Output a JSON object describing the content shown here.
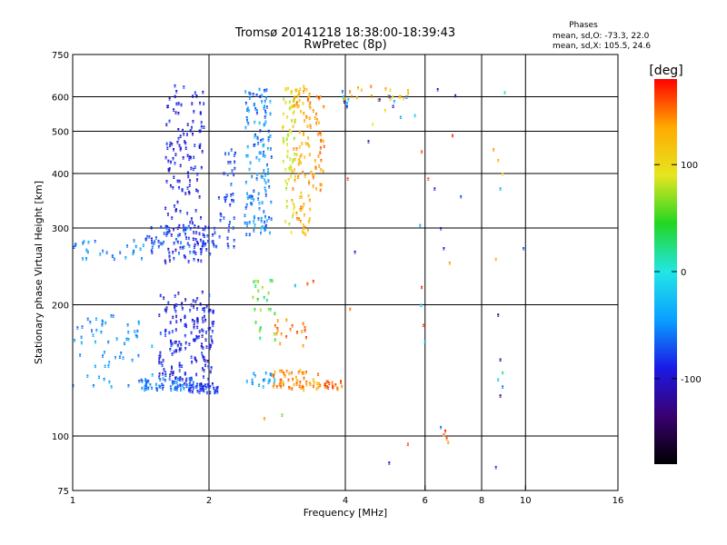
{
  "chart_data": {
    "type": "scatter",
    "title_line1": "Tromsø 20141218 18:38:00-18:39:43",
    "title_line2": "RwPretec (8p)",
    "stats": {
      "heading": "Phases",
      "line1": "mean, sd,O: -73.3, 22.0",
      "line2": "mean, sd,X: 105.5, 24.6"
    },
    "xlabel": "Frequency [MHz]",
    "ylabel": "Stationary phase Virtual Height [km]",
    "x_scale": "log",
    "y_scale": "log",
    "xlim": [
      1,
      16
    ],
    "ylim": [
      75,
      750
    ],
    "x_ticks": [
      {
        "value": 1,
        "label": "1"
      },
      {
        "value": 2,
        "label": "2"
      },
      {
        "value": 4,
        "label": "4"
      },
      {
        "value": 6,
        "label": "6"
      },
      {
        "value": 8,
        "label": "8"
      },
      {
        "value": 10,
        "label": "10"
      },
      {
        "value": 16,
        "label": "16"
      }
    ],
    "y_ticks": [
      {
        "value": 75,
        "label": "75"
      },
      {
        "value": 100,
        "label": "100"
      },
      {
        "value": 200,
        "label": "200"
      },
      {
        "value": 300,
        "label": "300"
      },
      {
        "value": 400,
        "label": "400"
      },
      {
        "value": 500,
        "label": "500"
      },
      {
        "value": 600,
        "label": "600"
      },
      {
        "value": 750,
        "label": "750"
      }
    ],
    "grid": true,
    "grid_x": [
      2,
      4,
      6,
      8,
      10
    ],
    "grid_y": [
      100,
      200,
      300,
      400,
      500,
      600
    ],
    "colorbar": {
      "label": "[deg]",
      "min": -180,
      "max": 180,
      "ticks": [
        {
          "value": 100,
          "label": "100"
        },
        {
          "value": 0,
          "label": "0"
        },
        {
          "value": -100,
          "label": "-100"
        }
      ],
      "colors": [
        "#000000",
        "#3a0070",
        "#1a1ae6",
        "#0aa0ff",
        "#22e6e6",
        "#22d622",
        "#e6e620",
        "#ffaa00",
        "#ff0000"
      ]
    },
    "clusters": [
      {
        "x": [
          1.55,
          2.05
        ],
        "y": [
          130,
          215
        ],
        "phase": [
          -110,
          -70
        ],
        "n": 180
      },
      {
        "x": [
          1.6,
          1.95
        ],
        "y": [
          250,
          640
        ],
        "phase": [
          -110,
          -75
        ],
        "n": 150
      },
      {
        "x": [
          1.45,
          2.1
        ],
        "y": [
          262,
          305
        ],
        "phase": [
          -95,
          -55
        ],
        "n": 80
      },
      {
        "x": [
          1.0,
          1.45
        ],
        "y": [
          255,
          282
        ],
        "phase": [
          -65,
          -40
        ],
        "n": 30
      },
      {
        "x": [
          1.0,
          1.5
        ],
        "y": [
          130,
          190
        ],
        "phase": [
          -65,
          -35
        ],
        "n": 55
      },
      {
        "x": [
          1.4,
          1.85
        ],
        "y": [
          128,
          136
        ],
        "phase": [
          -75,
          -45
        ],
        "n": 60
      },
      {
        "x": [
          1.8,
          2.1
        ],
        "y": [
          126,
          132
        ],
        "phase": [
          -90,
          -70
        ],
        "n": 40
      },
      {
        "x": [
          2.1,
          2.3
        ],
        "y": [
          270,
          460
        ],
        "phase": [
          -90,
          -60
        ],
        "n": 40
      },
      {
        "x": [
          2.4,
          2.75
        ],
        "y": [
          290,
          630
        ],
        "phase": [
          -80,
          -30
        ],
        "n": 140
      },
      {
        "x": [
          2.5,
          2.8
        ],
        "y": [
          160,
          230
        ],
        "phase": [
          20,
          80
        ],
        "n": 25
      },
      {
        "x": [
          2.4,
          2.8
        ],
        "y": [
          130,
          140
        ],
        "phase": [
          -60,
          -30
        ],
        "n": 20
      },
      {
        "x": [
          2.9,
          3.1
        ],
        "y": [
          290,
          640
        ],
        "phase": [
          70,
          110
        ],
        "n": 60
      },
      {
        "x": [
          3.05,
          3.35
        ],
        "y": [
          290,
          640
        ],
        "phase": [
          110,
          150
        ],
        "n": 90
      },
      {
        "x": [
          3.3,
          3.6
        ],
        "y": [
          360,
          620
        ],
        "phase": [
          125,
          160
        ],
        "n": 45
      },
      {
        "x": [
          2.75,
          3.6
        ],
        "y": [
          128,
          142
        ],
        "phase": [
          125,
          160
        ],
        "n": 60
      },
      {
        "x": [
          3.6,
          3.95
        ],
        "y": [
          128,
          134
        ],
        "phase": [
          140,
          170
        ],
        "n": 18
      },
      {
        "x": [
          2.8,
          3.3
        ],
        "y": [
          160,
          190
        ],
        "phase": [
          130,
          165
        ],
        "n": 18
      },
      {
        "x": [
          3.8,
          5.6
        ],
        "y": [
          590,
          640
        ],
        "phase": [
          100,
          150
        ],
        "n": 20
      },
      {
        "x": [
          3.8,
          5.6
        ],
        "y": [
          560,
          620
        ],
        "phase": [
          -110,
          -30
        ],
        "n": 10
      }
    ],
    "points": [
      {
        "x": 3.4,
        "y": 227,
        "phase": 165
      },
      {
        "x": 3.3,
        "y": 224,
        "phase": 160
      },
      {
        "x": 3.1,
        "y": 222,
        "phase": -40
      },
      {
        "x": 2.65,
        "y": 110,
        "phase": 140
      },
      {
        "x": 2.9,
        "y": 112,
        "phase": 60
      },
      {
        "x": 4.1,
        "y": 196,
        "phase": 150
      },
      {
        "x": 4.05,
        "y": 390,
        "phase": 160
      },
      {
        "x": 4.2,
        "y": 265,
        "phase": -90
      },
      {
        "x": 4.5,
        "y": 475,
        "phase": -110
      },
      {
        "x": 4.6,
        "y": 520,
        "phase": 90
      },
      {
        "x": 4.9,
        "y": 560,
        "phase": 100
      },
      {
        "x": 5.1,
        "y": 572,
        "phase": -100
      },
      {
        "x": 5.3,
        "y": 540,
        "phase": -40
      },
      {
        "x": 5.7,
        "y": 545,
        "phase": -20
      },
      {
        "x": 5.9,
        "y": 450,
        "phase": 160
      },
      {
        "x": 5.85,
        "y": 305,
        "phase": -40
      },
      {
        "x": 5.9,
        "y": 220,
        "phase": 170
      },
      {
        "x": 5.88,
        "y": 200,
        "phase": -30
      },
      {
        "x": 5.95,
        "y": 180,
        "phase": 160
      },
      {
        "x": 6.0,
        "y": 165,
        "phase": -30
      },
      {
        "x": 6.1,
        "y": 390,
        "phase": 160
      },
      {
        "x": 6.3,
        "y": 370,
        "phase": -90
      },
      {
        "x": 6.5,
        "y": 300,
        "phase": -100
      },
      {
        "x": 6.6,
        "y": 270,
        "phase": -90
      },
      {
        "x": 6.8,
        "y": 250,
        "phase": 140
      },
      {
        "x": 6.9,
        "y": 490,
        "phase": 170
      },
      {
        "x": 7.2,
        "y": 355,
        "phase": -70
      },
      {
        "x": 6.4,
        "y": 625,
        "phase": -100
      },
      {
        "x": 7.0,
        "y": 605,
        "phase": -110
      },
      {
        "x": 6.5,
        "y": 105,
        "phase": -60
      },
      {
        "x": 6.6,
        "y": 101,
        "phase": 150
      },
      {
        "x": 6.7,
        "y": 99,
        "phase": 160
      },
      {
        "x": 6.75,
        "y": 97,
        "phase": 140
      },
      {
        "x": 6.65,
        "y": 103,
        "phase": 170
      },
      {
        "x": 5.5,
        "y": 96,
        "phase": 160
      },
      {
        "x": 5.0,
        "y": 87,
        "phase": -100
      },
      {
        "x": 8.5,
        "y": 455,
        "phase": 140
      },
      {
        "x": 8.7,
        "y": 430,
        "phase": 130
      },
      {
        "x": 8.9,
        "y": 400,
        "phase": 100
      },
      {
        "x": 8.8,
        "y": 370,
        "phase": -40
      },
      {
        "x": 8.6,
        "y": 255,
        "phase": 130
      },
      {
        "x": 8.7,
        "y": 190,
        "phase": -130
      },
      {
        "x": 8.8,
        "y": 150,
        "phase": -120
      },
      {
        "x": 8.9,
        "y": 140,
        "phase": 20
      },
      {
        "x": 8.7,
        "y": 135,
        "phase": -20
      },
      {
        "x": 8.9,
        "y": 130,
        "phase": -60
      },
      {
        "x": 8.8,
        "y": 124,
        "phase": -130
      },
      {
        "x": 9.0,
        "y": 615,
        "phase": 20
      },
      {
        "x": 8.6,
        "y": 85,
        "phase": -80
      },
      {
        "x": 9.9,
        "y": 270,
        "phase": -70
      }
    ]
  }
}
